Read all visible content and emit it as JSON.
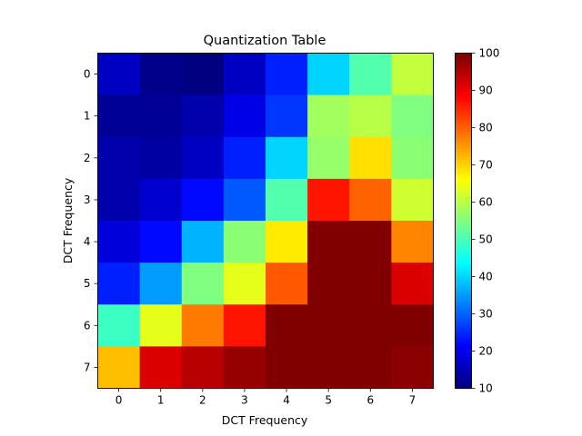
{
  "chart_data": {
    "type": "heatmap",
    "title": "Quantization Table",
    "xlabel": "DCT Frequency",
    "ylabel": "DCT Frequency",
    "x_ticks": [
      "0",
      "1",
      "2",
      "3",
      "4",
      "5",
      "6",
      "7"
    ],
    "y_ticks": [
      "0",
      "1",
      "2",
      "3",
      "4",
      "5",
      "6",
      "7"
    ],
    "colormap": "jet",
    "vmin": 10,
    "vmax": 100,
    "colorbar_ticks": [
      "10",
      "20",
      "30",
      "40",
      "50",
      "60",
      "70",
      "80",
      "90",
      "100"
    ],
    "values": [
      [
        16,
        11,
        10,
        16,
        24,
        40,
        51,
        61
      ],
      [
        12,
        12,
        14,
        19,
        26,
        58,
        60,
        55
      ],
      [
        14,
        13,
        16,
        24,
        40,
        57,
        69,
        56
      ],
      [
        14,
        17,
        22,
        29,
        51,
        87,
        80,
        62
      ],
      [
        18,
        22,
        37,
        56,
        68,
        109,
        103,
        77
      ],
      [
        24,
        35,
        55,
        64,
        81,
        104,
        113,
        92
      ],
      [
        49,
        64,
        78,
        87,
        103,
        121,
        120,
        101
      ],
      [
        72,
        92,
        95,
        98,
        112,
        100,
        103,
        99
      ]
    ]
  }
}
